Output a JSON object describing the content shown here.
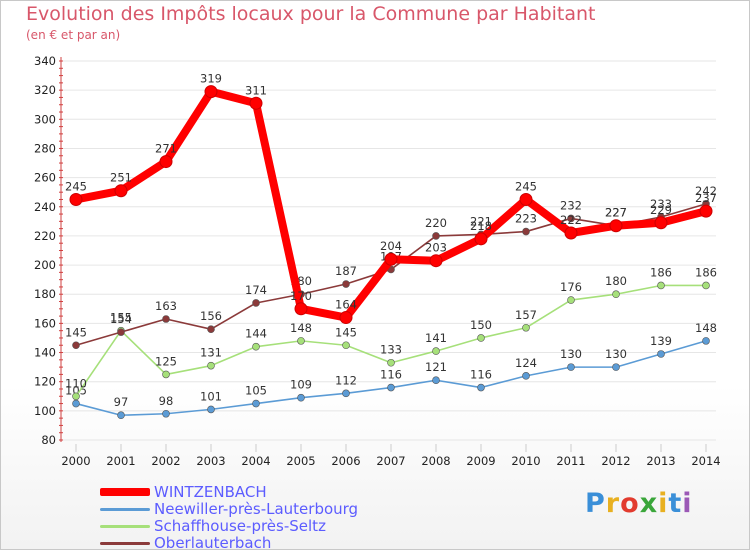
{
  "title": "Evolution des Impôts locaux pour la Commune par Habitant",
  "subtitle": "(en € et par an)",
  "logo": {
    "text": "Proxiti",
    "colors": [
      "#3a8fd8",
      "#e8b020",
      "#e23b2e",
      "#3aa63a",
      "#e8b020",
      "#3a8fd8",
      "#9b59b6"
    ]
  },
  "chart_data": {
    "type": "line",
    "categories": [
      "2000",
      "2001",
      "2002",
      "2003",
      "2004",
      "2005",
      "2006",
      "2007",
      "2008",
      "2009",
      "2010",
      "2011",
      "2012",
      "2013",
      "2014"
    ],
    "ylim": [
      80,
      340
    ],
    "yticks": [
      80,
      100,
      120,
      140,
      160,
      180,
      200,
      220,
      240,
      260,
      280,
      300,
      320,
      340
    ],
    "grid": true,
    "legend_position": "bottom-left",
    "series": [
      {
        "name": "WINTZENBACH",
        "color": "#ff0000",
        "values": [
          245,
          251,
          271,
          319,
          311,
          170,
          164,
          204,
          203,
          218,
          245,
          222,
          227,
          229,
          237
        ]
      },
      {
        "name": "Neewiller-près-Lauterbourg",
        "color": "#5b9bd5",
        "values": [
          105,
          97,
          98,
          101,
          105,
          109,
          112,
          116,
          121,
          116,
          124,
          130,
          130,
          139,
          148
        ]
      },
      {
        "name": "Schaffhouse-près-Seltz",
        "color": "#a6e07a",
        "values": [
          110,
          155,
          125,
          131,
          144,
          148,
          145,
          133,
          141,
          150,
          157,
          176,
          180,
          186,
          186
        ]
      },
      {
        "name": "Oberlauterbach",
        "color": "#8b3a3a",
        "values": [
          145,
          154,
          163,
          156,
          174,
          180,
          187,
          197,
          220,
          221,
          223,
          232,
          227,
          233,
          242
        ]
      }
    ]
  }
}
